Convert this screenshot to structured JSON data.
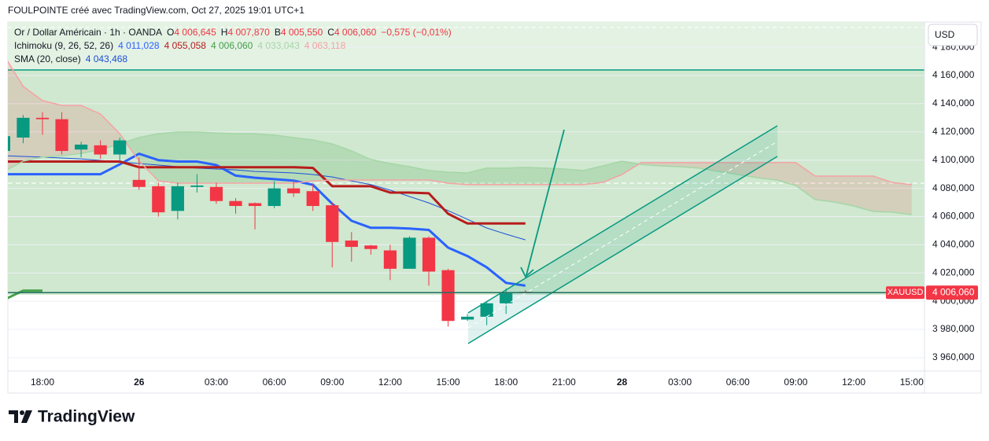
{
  "header": "FOULPOINTE créé avec TradingView.com, Oct 27, 2025 19:01 UTC+1",
  "brand": "TradingView",
  "chart_data": {
    "type": "candlestick",
    "title": "Or / Dollar Américain · 1h · OANDA",
    "currency": "USD",
    "symbol": "XAUUSD",
    "last_price": {
      "value": 4006.06,
      "label": "4 006,060"
    },
    "legend": {
      "ohlc": [
        {
          "key": "O",
          "text": "4 006,645"
        },
        {
          "key": "H",
          "text": "4 007,870"
        },
        {
          "key": "B",
          "text": "4 005,550"
        },
        {
          "key": "C",
          "text": "4 006,060"
        }
      ],
      "change": "−0,575 (−0,01%)",
      "indicators": [
        {
          "name": "Ichimoku (9, 26, 52, 26)",
          "texts": [
            "4 011,028",
            "4 055,058",
            "4 006,060",
            "4 033,043",
            "4 063,118"
          ]
        },
        {
          "name": "SMA (20, close)",
          "texts": [
            "4 043,468"
          ]
        }
      ]
    },
    "up_color": "#089981",
    "down_color": "#f23645",
    "grid": true,
    "categories": [
      null,
      null,
      "18:00",
      null,
      null,
      null,
      null,
      "26",
      null,
      null,
      null,
      "03:00",
      null,
      null,
      "06:00",
      null,
      null,
      "09:00",
      null,
      null,
      "12:00",
      null,
      null,
      "15:00",
      null,
      null,
      "18:00",
      null,
      null,
      "21:00",
      null,
      null,
      "28",
      null,
      null,
      "03:00",
      null,
      null,
      "06:00",
      null,
      null,
      "09:00",
      null,
      null,
      "12:00",
      null,
      null,
      "15:00"
    ],
    "open": [
      4106.5,
      4116,
      4130,
      4129,
      4107.5,
      4110.5,
      4104,
      4086,
      4081.5,
      4064,
      4081,
      4081,
      4071,
      4069.5,
      4067.5,
      4080,
      4078,
      4068,
      4043,
      4039.5,
      4036,
      4023,
      4045,
      4022,
      3987,
      3989,
      3998.5,
      4006.645,
      null,
      null,
      null,
      null,
      null,
      null,
      null,
      null,
      null,
      null,
      null,
      null,
      null,
      null,
      null,
      null,
      null,
      null,
      null,
      null
    ],
    "high": [
      4121.5,
      4132,
      4134,
      4134,
      4113,
      4114,
      4116,
      4102,
      4084,
      4084,
      4090,
      4084,
      4073,
      4070,
      4085,
      4086,
      4083,
      4070,
      4049,
      4040,
      4040,
      4046,
      4046,
      4023,
      3991,
      4000,
      4009,
      4007.87,
      null,
      null,
      null,
      null,
      null,
      null,
      null,
      null,
      null,
      null,
      null,
      null,
      null,
      null,
      null,
      null,
      null,
      null,
      null,
      null
    ],
    "low": [
      4105,
      4112,
      4118,
      4104,
      4102,
      4101,
      4099,
      4079,
      4060,
      4058,
      4077,
      4069,
      4062,
      4051,
      4066,
      4074,
      4064,
      4024,
      4028,
      4033,
      4015,
      4023,
      4011,
      3982,
      3986,
      3983,
      3991,
      4005.55,
      null,
      null,
      null,
      null,
      null,
      null,
      null,
      null,
      null,
      null,
      null,
      null,
      null,
      null,
      null,
      null,
      null,
      null,
      null,
      null
    ],
    "close": [
      4117,
      4130,
      4129,
      4106.5,
      4111,
      4104,
      4114,
      4081,
      4063,
      4081.5,
      4082,
      4071,
      4067.5,
      4067.5,
      4080,
      4076.5,
      4067.5,
      4042,
      4038.5,
      4037,
      4023,
      4045,
      4021,
      3986,
      3989,
      3998.5,
      4005.6,
      4006.06,
      null,
      null,
      null,
      null,
      null,
      null,
      null,
      null,
      null,
      null,
      null,
      null,
      null,
      null,
      null,
      null,
      null,
      null,
      null,
      null
    ],
    "series": [
      {
        "color": "#1e4fd8",
        "values": [
          4103.2,
          4102.6,
          4102.1,
          4101.5,
          4100.9,
          4099.8,
          4098.7,
          4097.6,
          4096.5,
          4095.4,
          4094.3,
          4093.7,
          4093.1,
          4092,
          4091.5,
          4090.9,
          4089.8,
          4088.1,
          4085.3,
          4082.6,
          4078.7,
          4074.2,
          4069.7,
          4064.2,
          4058.1,
          4051.9,
          4047.5,
          4043.5,
          null,
          null,
          null,
          null,
          null,
          null,
          null,
          null,
          null,
          null,
          null,
          null,
          null,
          null,
          null,
          null,
          null,
          null,
          null,
          null
        ]
      },
      {
        "color": "#2962ff",
        "values": [
          4090,
          4090,
          4090,
          4090,
          4090,
          4090,
          4097,
          4104.5,
          4100,
          4099,
          4099,
          4096.5,
          4089,
          4087.5,
          4086.5,
          4085.5,
          4082.5,
          4069,
          4057,
          4052,
          4052,
          4051.5,
          4050.5,
          4038,
          4032,
          4024,
          4013,
          4011,
          null,
          null,
          null,
          null,
          null,
          null,
          null,
          null,
          null,
          null,
          null,
          null,
          null,
          null,
          null,
          null,
          null,
          null,
          null,
          null
        ]
      },
      {
        "color": "#b71c1c",
        "values": [
          4099,
          4099,
          4099,
          4099,
          4099,
          4099,
          4099,
          4095,
          4095,
          4095,
          4095,
          4095,
          4095,
          4095,
          4095,
          4095,
          4094.5,
          4081.5,
          4081.5,
          4081.5,
          4077,
          4077,
          4076.5,
          4062,
          4055.1,
          4055.1,
          4055.1,
          4055.1,
          null,
          null,
          null,
          null,
          null,
          null,
          null,
          null,
          null,
          null,
          null,
          null,
          null,
          null,
          null,
          null,
          null,
          null,
          null,
          null
        ]
      },
      {
        "color": "#43a047",
        "values": [
          4001,
          4007.5,
          4007.5,
          null,
          null,
          null,
          null,
          null,
          null,
          null,
          null,
          null,
          null,
          null,
          null,
          null,
          null,
          null,
          null,
          null,
          null,
          null,
          null,
          null,
          null,
          null,
          null,
          null,
          null,
          null,
          null,
          null,
          null,
          null,
          null,
          null,
          null,
          null,
          null,
          null,
          null,
          null,
          null,
          null,
          null,
          null,
          null,
          null
        ]
      },
      {
        "color": "#a5d6a7",
        "values": [
          4092,
          4099.3,
          4102.1,
          4103.2,
          4104.8,
          4107.6,
          4111.5,
          4116,
          4118.8,
          4119.9,
          4119.9,
          4119.3,
          4118.8,
          4118.8,
          4117.7,
          4116,
          4114.3,
          4111.5,
          4106.5,
          4100.4,
          4097.6,
          4095.4,
          4092.6,
          4091.5,
          4090.9,
          4094.3,
          4094.3,
          4094.8,
          4094.3,
          4093.7,
          4092.6,
          4095.9,
          4099.3,
          4097,
          4095.9,
          4095.4,
          4094.3,
          4092,
          4089.8,
          4087.6,
          4085.9,
          4082,
          4072,
          4070.3,
          4067.5,
          4063.6,
          4063.1,
          4061.4
        ]
      },
      {
        "color": "#f7a1a4",
        "values": [
          4174.5,
          4152.2,
          4142.2,
          4138.8,
          4138.8,
          4132.7,
          4118.8,
          4099.3,
          4085.3,
          4083.7,
          4083.7,
          4083.7,
          4083.7,
          4083.7,
          4083.7,
          4083.7,
          4085.3,
          4085.9,
          4085.9,
          4085.9,
          4085.9,
          4085.9,
          4085.9,
          4083.7,
          4082.6,
          4082.6,
          4082.6,
          4082.6,
          4082.6,
          4082.6,
          4082.6,
          4084.2,
          4089.8,
          4098.2,
          4098.2,
          4098.2,
          4098.2,
          4098.2,
          4098.2,
          4098.2,
          4098.2,
          4098.2,
          4088.7,
          4088.7,
          4088.7,
          4088.7,
          4084.2,
          4082.6
        ]
      }
    ],
    "ylim": [
      3950.5,
      4197.9
    ],
    "yticks": [
      {
        "value": 4180,
        "label": "4 180,000"
      },
      {
        "value": 4160,
        "label": "4 160,000"
      },
      {
        "value": 4140,
        "label": "4 140,000"
      },
      {
        "value": 4120,
        "label": "4 120,000"
      },
      {
        "value": 4100,
        "label": "4 100,000"
      },
      {
        "value": 4080,
        "label": "4 080,000"
      },
      {
        "value": 4060,
        "label": "4 060,000"
      },
      {
        "value": 4040,
        "label": "4 040,000"
      },
      {
        "value": 4020,
        "label": "4 020,000"
      },
      {
        "value": 4000,
        "label": "4 000,000"
      },
      {
        "value": 3980,
        "label": "3 980,000"
      },
      {
        "value": 3960,
        "label": "3 960,000"
      }
    ]
  }
}
